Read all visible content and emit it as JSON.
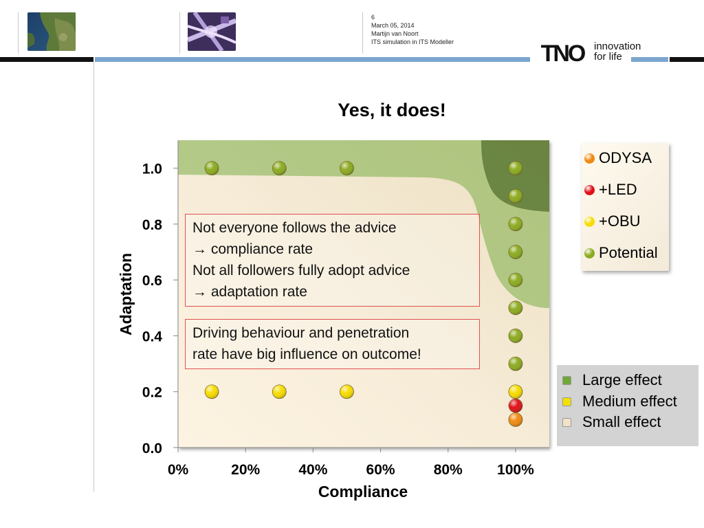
{
  "header": {
    "slide_number": "6",
    "date": "March 05, 2014",
    "author": "Martijn van Noort",
    "subject": "ITS simulation in ITS Modeller",
    "logo_text": "TNO",
    "tagline_line1": "innovation",
    "tagline_line2": "for life",
    "images": [
      "satellite-map-image",
      "traffic-junction-image"
    ]
  },
  "title": "Yes, it does!",
  "notes": [
    {
      "lines": [
        "Not everyone follows the advice",
        "→ compliance rate",
        "Not all followers fully adopt advice",
        "→ adaptation rate"
      ]
    },
    {
      "lines": [
        "Driving behaviour and penetration",
        "rate have big influence on outcome!"
      ]
    }
  ],
  "effect_legend": [
    {
      "label": "Large effect",
      "color": "#6fa83a"
    },
    {
      "label": "Medium effect",
      "color": "#f2e100"
    },
    {
      "label": "Small effect",
      "color": "#f3e1c8"
    }
  ],
  "chart_data": {
    "type": "scatter",
    "xlabel": "Compliance",
    "ylabel": "Adaptation",
    "xlim": [
      0,
      1.1
    ],
    "ylim": [
      0,
      1.1
    ],
    "x_ticks": [
      0,
      0.2,
      0.4,
      0.6,
      0.8,
      1.0
    ],
    "x_tick_labels": [
      "0%",
      "20%",
      "40%",
      "60%",
      "80%",
      "100%"
    ],
    "y_ticks": [
      0,
      0.2,
      0.4,
      0.6,
      0.8,
      1.0
    ],
    "y_tick_labels": [
      "0.0",
      "0.2",
      "0.4",
      "0.6",
      "0.8",
      "1.0"
    ],
    "grid": false,
    "legend_position": "right",
    "series": [
      {
        "name": "ODYSA",
        "color": "#f08a10",
        "points": [
          [
            1.0,
            0.1
          ]
        ]
      },
      {
        "name": "+LED",
        "color": "#e0101a",
        "points": [
          [
            1.0,
            0.15
          ]
        ]
      },
      {
        "name": "+OBU",
        "color": "#f7dc00",
        "points": [
          [
            0.1,
            0.2
          ],
          [
            0.3,
            0.2
          ],
          [
            0.5,
            0.2
          ],
          [
            1.0,
            0.2
          ]
        ]
      },
      {
        "name": "Potential",
        "color": "#8cab1f",
        "points": [
          [
            0.1,
            1.0
          ],
          [
            0.3,
            1.0
          ],
          [
            0.5,
            1.0
          ],
          [
            1.0,
            1.0
          ],
          [
            1.0,
            0.9
          ],
          [
            1.0,
            0.8
          ],
          [
            1.0,
            0.7
          ],
          [
            1.0,
            0.6
          ],
          [
            1.0,
            0.5
          ],
          [
            1.0,
            0.4
          ],
          [
            1.0,
            0.3
          ]
        ]
      }
    ]
  }
}
